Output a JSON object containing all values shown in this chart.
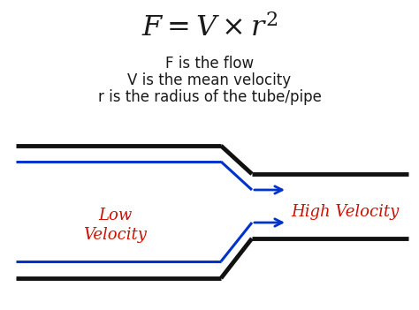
{
  "formula_latex": "$F = V \\times r^2$",
  "line1": "F is the flow",
  "line2": "V is the mean velocity",
  "line3": "r is the radius of the tube/pipe",
  "label_low": "Low\nVelocity",
  "label_high": "High Velocity",
  "bg_color": "#ffffff",
  "text_color": "#1a1a1a",
  "red_color": "#cc1100",
  "blue_color": "#0033cc",
  "black_color": "#111111",
  "fig_w": 4.74,
  "fig_h": 3.51,
  "dpi": 100
}
